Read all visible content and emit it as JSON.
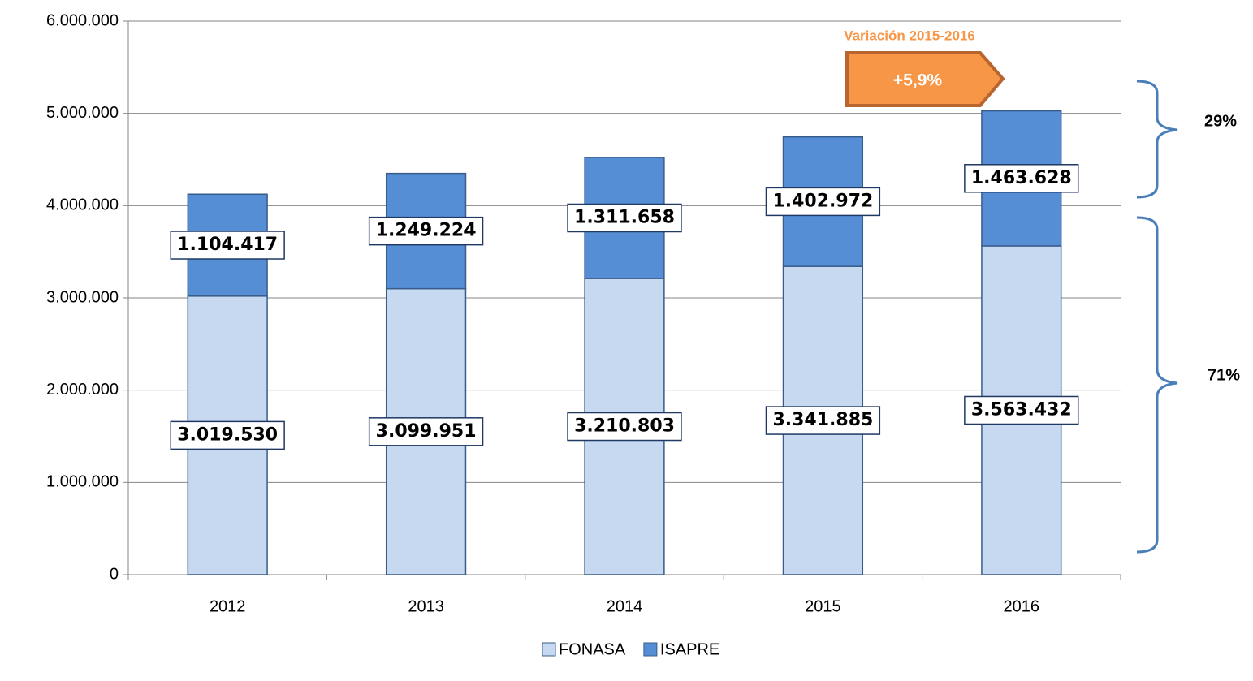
{
  "chart_data": {
    "type": "stacked_bar",
    "categories": [
      "2012",
      "2013",
      "2014",
      "2015",
      "2016"
    ],
    "series": [
      {
        "name": "FONASA",
        "color": "#c6d9f1",
        "values": [
          3019530,
          3099951,
          3210803,
          3341885,
          3563432
        ],
        "value_labels": [
          "3.019.530",
          "3.099.951",
          "3.210.803",
          "3.341.885",
          "3.563.432"
        ]
      },
      {
        "name": "ISAPRE",
        "color": "#558ed5",
        "values": [
          1104417,
          1249224,
          1311658,
          1402972,
          1463628
        ],
        "value_labels": [
          "1.104.417",
          "1.249.224",
          "1.311.658",
          "1.402.972",
          "1.463.628"
        ]
      }
    ],
    "ylim": [
      0,
      6000000
    ],
    "yticks": [
      0,
      {
        "value": 1000000,
        "label": "1.000.000"
      },
      {
        "value": 2000000,
        "label": "2.000.000"
      },
      {
        "value": 3000000,
        "label": "3.000.000"
      },
      {
        "value": 4000000,
        "label": "4.000.000"
      },
      {
        "value": 5000000,
        "label": "5.000.000"
      },
      {
        "value": 6000000,
        "label": "6.000.000"
      }
    ],
    "grid": true,
    "legend": "bottom",
    "annotations": {
      "variation_title": "Variación 2015-2016",
      "variation_value": "+5,9%",
      "isapre_share": "29%",
      "fonasa_share": "71%"
    }
  }
}
